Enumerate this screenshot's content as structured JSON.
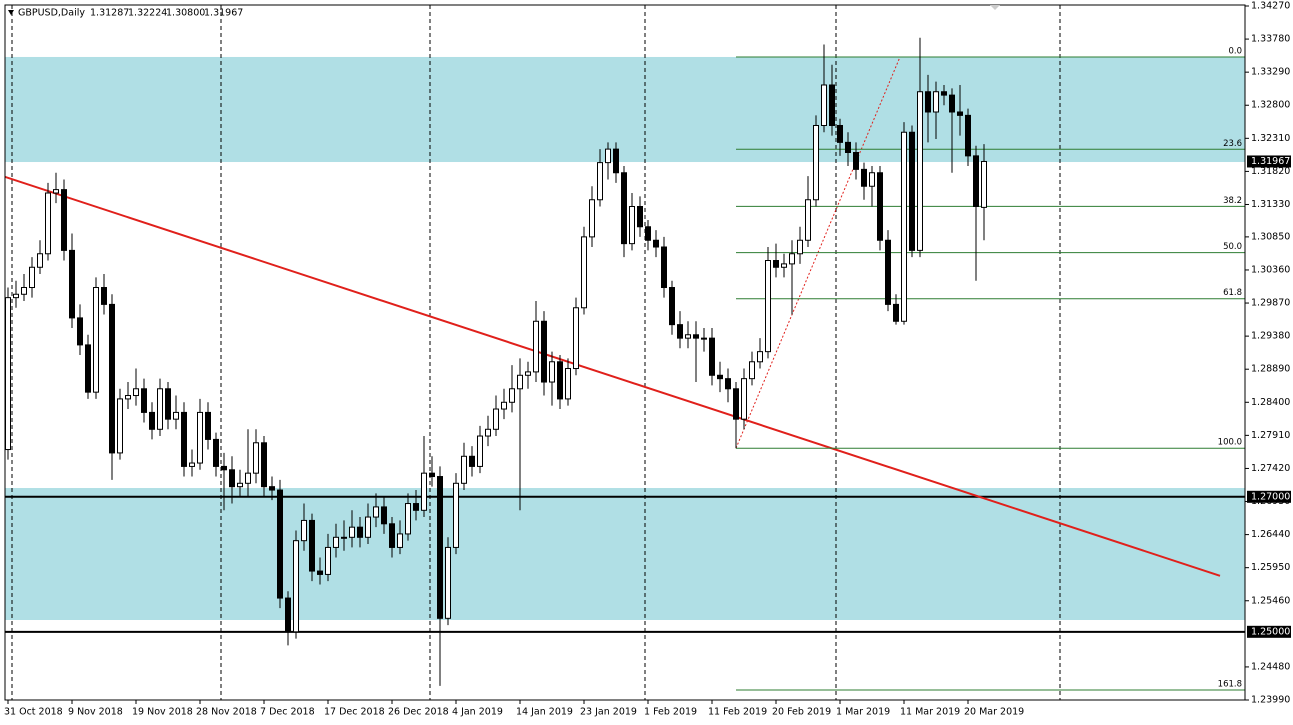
{
  "chart_data": {
    "type": "candlestick",
    "title": "GBPUSD,Daily",
    "header_prices": [
      "1.31287",
      "1.32224",
      "1.30800",
      "1.31967"
    ],
    "categories": [
      "31 Oct 2018",
      null,
      null,
      null,
      null,
      null,
      null,
      null,
      "9 Nov 2018",
      null,
      null,
      null,
      null,
      null,
      null,
      null,
      "19 Nov 2018",
      null,
      null,
      null,
      null,
      null,
      null,
      null,
      "28 Nov 2018",
      null,
      null,
      null,
      null,
      null,
      null,
      null,
      "7 Dec 2018",
      null,
      null,
      null,
      null,
      null,
      null,
      null,
      "17 Dec 2018",
      null,
      null,
      null,
      null,
      null,
      null,
      null,
      "26 Dec 2018",
      null,
      null,
      null,
      null,
      null,
      null,
      null,
      "4 Jan 2019",
      null,
      null,
      null,
      null,
      null,
      null,
      null,
      "14 Jan 2019",
      null,
      null,
      null,
      null,
      null,
      null,
      null,
      "23 Jan 2019",
      null,
      null,
      null,
      null,
      null,
      null,
      null,
      "1 Feb 2019",
      null,
      null,
      null,
      null,
      null,
      null,
      null,
      "11 Feb 2019",
      null,
      null,
      null,
      null,
      null,
      null,
      null,
      "20 Feb 2019",
      null,
      null,
      null,
      null,
      null,
      null,
      null,
      "1 Mar 2019",
      null,
      null,
      null,
      null,
      null,
      null,
      null,
      "11 Mar 2019",
      null,
      null,
      null,
      null,
      null,
      null,
      null,
      "20 Mar 2019",
      null,
      null
    ],
    "open": [
      1.277,
      1.2995,
      1.3,
      1.301,
      1.304,
      1.306,
      1.315,
      1.3155,
      1.3065,
      1.2965,
      1.2925,
      1.2855,
      1.301,
      1.2985,
      1.2765,
      1.2845,
      1.285,
      1.286,
      1.2825,
      1.28,
      1.286,
      1.2815,
      1.2825,
      1.2745,
      1.275,
      1.2825,
      1.2785,
      1.2745,
      1.274,
      1.2715,
      1.272,
      1.2735,
      1.278,
      1.2715,
      1.271,
      1.255,
      1.25,
      1.2635,
      1.2665,
      1.259,
      1.2585,
      1.2625,
      1.264,
      1.264,
      1.2655,
      1.264,
      1.267,
      1.2685,
      1.266,
      1.2625,
      1.2645,
      1.269,
      1.268,
      1.2735,
      1.273,
      1.252,
      1.2625,
      1.272,
      1.276,
      1.2745,
      1.279,
      1.28,
      1.283,
      1.284,
      1.286,
      1.288,
      1.2885,
      1.296,
      1.287,
      1.29,
      1.2845,
      1.289,
      1.298,
      1.3085,
      1.314,
      1.3195,
      1.3215,
      1.318,
      1.3075,
      1.313,
      1.31,
      1.308,
      1.307,
      1.301,
      1.2955,
      1.2935,
      1.294,
      1.2935,
      1.2935,
      1.288,
      1.2875,
      1.286,
      1.2815,
      1.2875,
      1.29,
      1.2915,
      1.305,
      1.304,
      1.3045,
      1.306,
      1.308,
      1.314,
      1.325,
      1.331,
      1.325,
      1.3225,
      1.321,
      1.3185,
      1.316,
      1.318,
      1.308,
      1.2985,
      1.296,
      1.324,
      1.3065,
      1.33,
      1.327,
      1.33,
      1.3295,
      1.327,
      1.3265,
      1.3205,
      1.31287
    ],
    "high": [
      1.301,
      1.302,
      1.303,
      1.3055,
      1.308,
      1.3165,
      1.318,
      1.317,
      1.309,
      1.2985,
      1.294,
      1.3025,
      1.303,
      1.3,
      1.286,
      1.287,
      1.289,
      1.2875,
      1.284,
      1.2875,
      1.287,
      1.285,
      1.284,
      1.277,
      1.2845,
      1.284,
      1.2795,
      1.2765,
      1.276,
      1.274,
      1.28,
      1.28,
      1.279,
      1.273,
      1.2725,
      1.256,
      1.265,
      1.269,
      1.2675,
      1.261,
      1.2645,
      1.266,
      1.2665,
      1.268,
      1.267,
      1.269,
      1.2705,
      1.27,
      1.267,
      1.2665,
      1.2705,
      1.271,
      1.279,
      1.276,
      1.2745,
      1.264,
      1.2735,
      1.278,
      1.2775,
      1.2805,
      1.282,
      1.285,
      1.286,
      1.2895,
      1.2905,
      1.29,
      1.299,
      1.2975,
      1.2915,
      1.291,
      1.2905,
      1.2995,
      1.31,
      1.316,
      1.3215,
      1.3225,
      1.3225,
      1.319,
      1.315,
      1.3145,
      1.311,
      1.3095,
      1.3085,
      1.302,
      1.2975,
      1.296,
      1.296,
      1.295,
      1.295,
      1.29,
      1.289,
      1.287,
      1.289,
      1.2915,
      1.2935,
      1.307,
      1.3075,
      1.306,
      1.308,
      1.31,
      1.3175,
      1.3265,
      1.337,
      1.334,
      1.326,
      1.324,
      1.3225,
      1.3195,
      1.319,
      1.319,
      1.3095,
      1.3,
      1.3255,
      1.325,
      1.338,
      1.3325,
      1.3315,
      1.331,
      1.3305,
      1.331,
      1.3275,
      1.322,
      1.32224
    ],
    "low": [
      1.2755,
      1.298,
      1.299,
      1.2995,
      1.303,
      1.305,
      1.3135,
      1.305,
      1.295,
      1.291,
      1.2845,
      1.2845,
      1.297,
      1.2725,
      1.2755,
      1.283,
      1.2835,
      1.281,
      1.2785,
      1.279,
      1.28,
      1.28,
      1.273,
      1.273,
      1.274,
      1.277,
      1.273,
      1.268,
      1.269,
      1.27,
      1.27,
      1.272,
      1.27,
      1.2695,
      1.2535,
      1.248,
      1.249,
      1.262,
      1.2575,
      1.257,
      1.2575,
      1.261,
      1.262,
      1.2625,
      1.2625,
      1.263,
      1.2655,
      1.2645,
      1.261,
      1.2615,
      1.2635,
      1.2665,
      1.267,
      1.2715,
      1.242,
      1.251,
      1.2615,
      1.271,
      1.273,
      1.2735,
      1.2775,
      1.279,
      1.2815,
      1.2825,
      1.268,
      1.286,
      1.287,
      1.285,
      1.2835,
      1.283,
      1.2835,
      1.288,
      1.297,
      1.307,
      1.313,
      1.317,
      1.3165,
      1.3055,
      1.3065,
      1.3085,
      1.3065,
      1.3055,
      1.2995,
      1.294,
      1.292,
      1.292,
      1.287,
      1.2915,
      1.2865,
      1.2855,
      1.284,
      1.2772,
      1.28,
      1.2865,
      1.289,
      1.2905,
      1.3025,
      1.3025,
      1.297,
      1.3045,
      1.307,
      1.313,
      1.324,
      1.3235,
      1.3205,
      1.319,
      1.317,
      1.314,
      1.313,
      1.3065,
      1.2975,
      1.2955,
      1.2955,
      1.3055,
      1.3055,
      1.3225,
      1.323,
      1.328,
      1.318,
      1.3235,
      1.319,
      1.302,
      1.308
    ],
    "close": [
      1.2995,
      1.3,
      1.301,
      1.304,
      1.306,
      1.315,
      1.3155,
      1.3065,
      1.2965,
      1.2925,
      1.2855,
      1.301,
      1.2985,
      1.2765,
      1.2845,
      1.285,
      1.286,
      1.2825,
      1.28,
      1.286,
      1.2815,
      1.2825,
      1.2745,
      1.275,
      1.2825,
      1.2785,
      1.2745,
      1.274,
      1.2715,
      1.272,
      1.2735,
      1.278,
      1.2715,
      1.271,
      1.255,
      1.25,
      1.2635,
      1.2665,
      1.259,
      1.2585,
      1.2625,
      1.264,
      1.264,
      1.2655,
      1.264,
      1.267,
      1.2685,
      1.266,
      1.2625,
      1.2645,
      1.269,
      1.268,
      1.2735,
      1.273,
      1.252,
      1.2625,
      1.272,
      1.276,
      1.2745,
      1.279,
      1.28,
      1.283,
      1.284,
      1.286,
      1.288,
      1.2885,
      1.296,
      1.287,
      1.29,
      1.2845,
      1.289,
      1.298,
      1.3085,
      1.314,
      1.3195,
      1.3215,
      1.318,
      1.3075,
      1.313,
      1.31,
      1.308,
      1.307,
      1.301,
      1.2955,
      1.2935,
      1.294,
      1.2935,
      1.2935,
      1.288,
      1.2875,
      1.286,
      1.2815,
      1.2875,
      1.29,
      1.2915,
      1.305,
      1.304,
      1.3045,
      1.306,
      1.308,
      1.314,
      1.325,
      1.331,
      1.325,
      1.3225,
      1.321,
      1.3185,
      1.316,
      1.318,
      1.308,
      1.2985,
      1.296,
      1.324,
      1.3065,
      1.33,
      1.327,
      1.33,
      1.3295,
      1.327,
      1.3265,
      1.3205,
      1.313,
      1.31967
    ],
    "up_color": "#ffffff",
    "down_color": "#000000",
    "ylim": [
      1.2399,
      1.3427
    ],
    "yticks": [
      {
        "value": 1.3427,
        "label": "1.34270"
      },
      {
        "value": 1.3378,
        "label": "1.33780"
      },
      {
        "value": 1.3329,
        "label": "1.33290"
      },
      {
        "value": 1.328,
        "label": "1.32800"
      },
      {
        "value": 1.3231,
        "label": "1.32310"
      },
      {
        "value": 1.3182,
        "label": "1.31820"
      },
      {
        "value": 1.3133,
        "label": "1.31330"
      },
      {
        "value": 1.3085,
        "label": "1.30850"
      },
      {
        "value": 1.3036,
        "label": "1.30360"
      },
      {
        "value": 1.2987,
        "label": "1.29870"
      },
      {
        "value": 1.2938,
        "label": "1.29380"
      },
      {
        "value": 1.2889,
        "label": "1.28890"
      },
      {
        "value": 1.284,
        "label": "1.28400"
      },
      {
        "value": 1.2791,
        "label": "1.27910"
      },
      {
        "value": 1.2742,
        "label": "1.27420"
      },
      {
        "value": 1.2693,
        "label": "1.26930"
      },
      {
        "value": 1.2644,
        "label": "1.26440"
      },
      {
        "value": 1.2595,
        "label": "1.25950"
      },
      {
        "value": 1.2546,
        "label": "1.25460"
      },
      {
        "value": 1.2448,
        "label": "1.24480"
      },
      {
        "value": 1.2399,
        "label": "1.23990"
      }
    ],
    "last_price": 1.31967,
    "levels": [
      {
        "value": 1.27,
        "label": "1.27000"
      },
      {
        "value": 1.25,
        "label": "1.25000"
      }
    ],
    "zones": [
      [
        1.33515,
        1.31959
      ],
      [
        1.2713,
        1.25175
      ]
    ],
    "zone_color": "#b0dfe5",
    "trendline": {
      "x": [
        -0.4,
        151.5
      ],
      "y": [
        1.3174,
        1.2583
      ],
      "color": "#e0201b"
    },
    "fib": {
      "x": [
        91,
        111.5
      ],
      "high": 1.33515,
      "low": 1.2772,
      "color": "#2e7d32",
      "levels": [
        {
          "value": 0,
          "label": "0.0"
        },
        {
          "value": 23.6,
          "label": "23.6"
        },
        {
          "value": 38.2,
          "label": "38.2"
        },
        {
          "value": 50,
          "label": "50.0"
        },
        {
          "value": 61.8,
          "label": "61.8"
        },
        {
          "value": 100,
          "label": "100.0"
        },
        {
          "value": 161.8,
          "label": "161.8"
        }
      ]
    }
  }
}
